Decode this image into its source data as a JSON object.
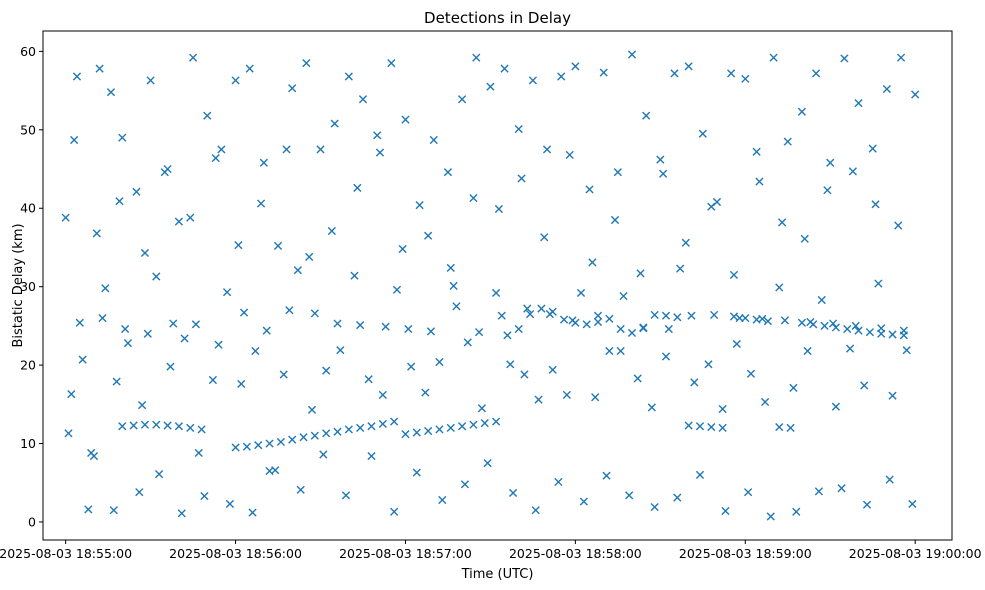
{
  "chart_data": {
    "type": "scatter",
    "title": "Detections in Delay",
    "xlabel": "Time (UTC)",
    "ylabel": "Bistatic Delay (km)",
    "x_tick_labels": [
      "2025-08-03 18:55:00",
      "2025-08-03 18:56:00",
      "2025-08-03 18:57:00",
      "2025-08-03 18:58:00",
      "2025-08-03 18:59:00",
      "2025-08-03 19:00:00"
    ],
    "x_range": [
      "2025-08-03 18:54:52",
      "2025-08-03 19:00:13"
    ],
    "y_ticks": [
      0,
      10,
      20,
      30,
      40,
      50,
      60
    ],
    "y_tick_labels": [
      "0",
      "10",
      "20",
      "30",
      "40",
      "50",
      "60"
    ],
    "ylim": [
      -2.3,
      62.6
    ],
    "marker": "x",
    "color": "#1f77b4",
    "grid": false,
    "legend": "none",
    "series": [
      {
        "time": [
          "18:55:00",
          "18:55:04",
          "18:55:08",
          "18:55:12",
          "18:55:16",
          "18:55:20",
          "18:55:25",
          "18:55:30",
          "18:55:35",
          "18:55:40",
          "18:55:45",
          "18:55:50",
          "18:55:55",
          "18:56:00",
          "18:56:05",
          "18:56:10",
          "18:56:15",
          "18:56:20",
          "18:56:25",
          "18:56:30",
          "18:56:35",
          "18:56:40",
          "18:56:45",
          "18:56:50",
          "18:56:55",
          "18:57:00",
          "18:57:05",
          "18:57:10",
          "18:57:15",
          "18:57:20",
          "18:57:25",
          "18:57:30",
          "18:57:35",
          "18:57:40",
          "18:57:45",
          "18:57:50",
          "18:57:55",
          "18:58:00",
          "18:58:05",
          "18:58:10",
          "18:58:15",
          "18:58:20",
          "18:58:25",
          "18:58:30",
          "18:58:35",
          "18:58:40",
          "18:58:45",
          "18:58:50",
          "18:58:55",
          "18:59:00",
          "18:59:05",
          "18:59:10",
          "18:59:15",
          "18:59:20",
          "18:59:25",
          "18:59:30",
          "18:59:35",
          "18:59:40",
          "18:59:45",
          "18:59:50",
          "18:59:55",
          "19:00:00",
          "18:55:02",
          "18:55:06",
          "18:55:10",
          "18:55:14",
          "18:55:18",
          "18:55:22",
          "18:55:27",
          "18:55:32",
          "18:55:37",
          "18:55:42",
          "18:55:47",
          "18:55:52",
          "18:55:57",
          "18:56:02",
          "18:56:07",
          "18:56:12",
          "18:56:17",
          "18:56:22",
          "18:56:27",
          "18:56:32",
          "18:56:37",
          "18:56:42",
          "18:56:47",
          "18:56:52",
          "18:56:57",
          "18:57:02",
          "18:57:07",
          "18:57:12",
          "18:57:17",
          "18:57:22",
          "18:57:27",
          "18:57:32",
          "18:57:37",
          "18:57:42",
          "18:57:47",
          "18:57:52",
          "18:57:57",
          "18:58:02",
          "18:58:07",
          "18:58:12",
          "18:58:17",
          "18:58:22",
          "18:58:27",
          "18:58:32",
          "18:58:37",
          "18:58:42",
          "18:58:47",
          "18:58:52",
          "18:58:57",
          "18:59:02",
          "18:59:07",
          "18:59:12",
          "18:59:17",
          "18:59:22",
          "18:59:27",
          "18:59:32",
          "18:59:37",
          "18:59:42",
          "18:59:47",
          "18:59:52",
          "18:59:57",
          "18:55:01",
          "18:55:09",
          "18:55:17",
          "18:55:26",
          "18:55:33",
          "18:55:41",
          "18:55:49",
          "18:55:58",
          "18:56:06",
          "18:56:14",
          "18:56:23",
          "18:56:31",
          "18:56:39",
          "18:56:48",
          "18:56:56",
          "18:57:04",
          "18:57:13",
          "18:57:21",
          "18:57:29",
          "18:57:38",
          "18:57:46",
          "18:57:54",
          "18:58:03",
          "18:58:11",
          "18:58:19",
          "18:58:28",
          "18:58:36",
          "18:58:44",
          "18:58:53",
          "18:59:01",
          "18:59:09",
          "18:59:18",
          "18:59:26",
          "18:59:34",
          "18:59:43",
          "18:59:51",
          "18:59:59",
          "18:55:03",
          "18:55:11",
          "18:55:19",
          "18:55:28",
          "18:55:36",
          "18:55:44",
          "18:55:53",
          "18:56:01",
          "18:56:09",
          "18:56:18",
          "18:56:26",
          "18:56:34",
          "18:56:43",
          "18:56:51",
          "18:56:59",
          "18:57:08",
          "18:57:16",
          "18:57:24",
          "18:57:33",
          "18:57:41",
          "18:57:49",
          "18:57:58",
          "18:58:06",
          "18:58:14",
          "18:58:23",
          "18:58:31",
          "18:58:39",
          "18:58:48",
          "18:58:56",
          "18:59:04",
          "18:59:13",
          "18:59:21",
          "18:59:29",
          "18:59:38",
          "18:59:46",
          "18:59:54",
          "18:55:05",
          "18:55:13",
          "18:55:21",
          "18:55:29",
          "18:55:38",
          "18:55:46",
          "18:55:54",
          "18:56:03",
          "18:56:11",
          "18:56:19",
          "18:56:28",
          "18:56:36",
          "18:56:44",
          "18:56:53",
          "18:57:01",
          "18:57:09",
          "18:57:18",
          "18:57:26",
          "18:57:34",
          "18:57:43",
          "18:57:51",
          "18:57:59",
          "18:58:08",
          "18:58:16",
          "18:58:24",
          "18:58:33",
          "18:58:41",
          "18:58:49",
          "18:58:58",
          "18:59:06",
          "18:59:14",
          "18:59:23",
          "18:59:31",
          "18:59:39",
          "18:59:48",
          "18:59:56"
        ],
        "delay_km": [
          38.8,
          56.8,
          1.6,
          57.8,
          54.8,
          49.0,
          42.1,
          56.3,
          44.6,
          38.3,
          59.2,
          51.8,
          47.5,
          56.3,
          57.8,
          45.8,
          35.2,
          55.3,
          58.5,
          47.5,
          50.8,
          56.8,
          53.9,
          49.3,
          58.5,
          51.3,
          40.4,
          48.7,
          44.6,
          53.9,
          59.2,
          55.5,
          57.8,
          50.1,
          56.3,
          47.5,
          56.8,
          58.1,
          42.4,
          57.3,
          44.6,
          59.6,
          51.8,
          46.2,
          57.2,
          58.1,
          49.5,
          40.8,
          57.2,
          56.5,
          43.4,
          59.2,
          48.5,
          52.3,
          57.2,
          45.8,
          59.1,
          53.4,
          47.6,
          55.2,
          59.2,
          54.5,
          16.3,
          20.7,
          8.4,
          29.8,
          17.9,
          22.8,
          14.9,
          31.3,
          19.8,
          23.4,
          8.8,
          18.1,
          29.3,
          17.6,
          21.8,
          6.5,
          18.8,
          32.1,
          14.3,
          19.3,
          21.9,
          31.4,
          18.2,
          16.2,
          29.6,
          19.8,
          16.5,
          20.4,
          30.1,
          22.9,
          14.5,
          29.2,
          20.1,
          18.8,
          15.6,
          19.4,
          16.2,
          29.2,
          15.9,
          21.8,
          28.8,
          18.3,
          14.6,
          21.1,
          32.3,
          17.8,
          20.1,
          14.4,
          22.7,
          18.9,
          15.3,
          29.9,
          17.1,
          21.8,
          28.3,
          14.7,
          22.1,
          17.4,
          30.4,
          16.1,
          21.9,
          11.3,
          8.8,
          1.5,
          3.8,
          6.1,
          1.1,
          3.3,
          2.3,
          1.2,
          6.6,
          4.1,
          8.6,
          3.4,
          8.4,
          1.3,
          6.3,
          2.8,
          4.8,
          7.5,
          3.7,
          1.5,
          5.1,
          2.6,
          5.9,
          3.4,
          1.9,
          3.1,
          6.0,
          1.4,
          3.8,
          0.7,
          1.3,
          3.9,
          4.3,
          2.2,
          5.4,
          2.3,
          48.7,
          36.8,
          40.9,
          34.3,
          45.0,
          38.8,
          46.4,
          35.3,
          40.6,
          47.5,
          33.8,
          37.1,
          42.6,
          47.1,
          34.8,
          36.5,
          32.4,
          41.3,
          39.9,
          43.8,
          36.3,
          46.8,
          33.1,
          38.5,
          31.7,
          44.4,
          35.6,
          40.2,
          31.5,
          47.2,
          38.2,
          36.1,
          42.3,
          44.7,
          40.5,
          37.8,
          25.4,
          26.0,
          24.6,
          24.0,
          25.3,
          25.2,
          22.6,
          26.7,
          24.4,
          27.0,
          26.6,
          25.3,
          25.1,
          24.9,
          24.6,
          24.3,
          27.5,
          24.2,
          26.3,
          27.2,
          26.5,
          25.7,
          25.5,
          21.8,
          24.7,
          24.6,
          26.3,
          26.4,
          26.0,
          25.9,
          25.7,
          25.5,
          25.3,
          25.0,
          24.7,
          24.4
        ]
      },
      {
        "time": [
          "18:55:20",
          "18:55:24",
          "18:55:28",
          "18:55:32",
          "18:55:36",
          "18:55:40",
          "18:55:44",
          "18:55:48",
          "18:56:00",
          "18:56:04",
          "18:56:08",
          "18:56:12",
          "18:56:16",
          "18:56:20",
          "18:56:24",
          "18:56:28",
          "18:56:32",
          "18:56:36",
          "18:56:40",
          "18:56:44",
          "18:56:48",
          "18:56:52",
          "18:56:56",
          "18:57:00",
          "18:57:04",
          "18:57:08",
          "18:57:12",
          "18:57:16",
          "18:57:20",
          "18:57:24",
          "18:57:28",
          "18:57:32",
          "18:57:36",
          "18:57:40",
          "18:57:44",
          "18:57:48",
          "18:57:52",
          "18:57:56",
          "18:58:00",
          "18:58:04",
          "18:58:08",
          "18:58:12",
          "18:58:16",
          "18:58:20",
          "18:58:24",
          "18:58:28",
          "18:58:32",
          "18:58:36",
          "18:58:40",
          "18:58:44",
          "18:58:48",
          "18:58:52",
          "18:58:56",
          "18:59:00",
          "18:59:04",
          "18:59:08",
          "18:59:12",
          "18:59:16",
          "18:59:20",
          "18:59:24",
          "18:59:28",
          "18:59:32",
          "18:59:36",
          "18:59:40",
          "18:59:44",
          "18:59:48",
          "18:59:52",
          "18:59:56"
        ],
        "delay_km": [
          12.2,
          12.3,
          12.4,
          12.4,
          12.3,
          12.2,
          12.0,
          11.8,
          9.5,
          9.6,
          9.8,
          10.0,
          10.2,
          10.5,
          10.8,
          11.0,
          11.3,
          11.5,
          11.8,
          12.0,
          12.2,
          12.5,
          12.8,
          11.2,
          11.4,
          11.6,
          11.8,
          12.0,
          12.2,
          12.4,
          12.6,
          12.8,
          23.8,
          24.6,
          26.5,
          27.2,
          26.8,
          25.8,
          25.4,
          25.2,
          26.3,
          25.9,
          24.6,
          24.1,
          24.8,
          26.4,
          26.3,
          26.1,
          12.3,
          12.2,
          12.1,
          12.0,
          26.2,
          26.0,
          25.8,
          25.6,
          12.1,
          12.0,
          25.4,
          25.2,
          25.0,
          24.8,
          24.6,
          24.4,
          24.2,
          24.0,
          23.9,
          23.8
        ]
      }
    ]
  }
}
